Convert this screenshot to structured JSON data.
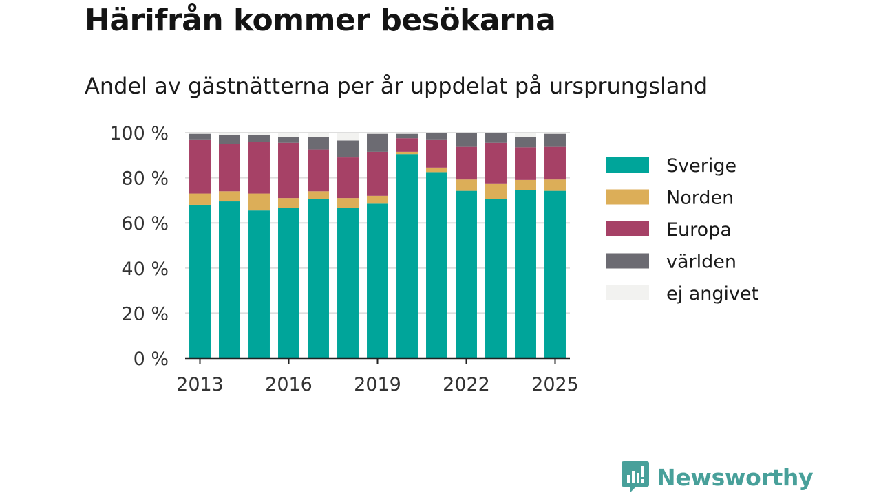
{
  "header": {
    "title": "Härifrån kommer besökarna",
    "subtitle": "Andel av gästnätterna per år uppdelat på ursprungsland"
  },
  "brand": {
    "name": "Newsworthy",
    "color": "#48a09a"
  },
  "chart_data": {
    "type": "bar",
    "stacked": true,
    "categories": [
      "2013",
      "2014",
      "2015",
      "2016",
      "2017",
      "2018",
      "2019",
      "2020",
      "2021",
      "2022",
      "2023",
      "2024",
      "2025"
    ],
    "x_tick_labels": [
      "2013",
      "2016",
      "2019",
      "2022",
      "2025"
    ],
    "y_tick_labels": [
      "0 %",
      "20 %",
      "40 %",
      "60 %",
      "80 %",
      "100 %"
    ],
    "y_ticks": [
      0,
      20,
      40,
      60,
      80,
      100
    ],
    "ylim": [
      0,
      100
    ],
    "grid": true,
    "legend_position": "right",
    "series": [
      {
        "name": "Sverige",
        "color": "#00a59a",
        "values": [
          68,
          69.5,
          65.5,
          66.5,
          70.5,
          66.5,
          68.5,
          90.5,
          82.5,
          74.2,
          70.5,
          74.5,
          74.2
        ]
      },
      {
        "name": "Norden",
        "color": "#dcae58",
        "values": [
          5,
          4.5,
          7.5,
          4.5,
          3.5,
          4.5,
          3.5,
          1,
          2,
          5,
          7,
          4.5,
          5
        ]
      },
      {
        "name": "Europa",
        "color": "#a64166",
        "values": [
          24,
          21,
          23,
          24.5,
          18.5,
          18,
          19.5,
          6,
          12.5,
          14.5,
          18,
          14.5,
          14.5
        ]
      },
      {
        "name": "världen",
        "color": "#6c6b72",
        "values": [
          2.5,
          4,
          3,
          2.5,
          5.5,
          7.5,
          8,
          2,
          3,
          6.3,
          4.5,
          4.5,
          5.8
        ]
      },
      {
        "name": "ej angivet",
        "color": "#f2f2f0",
        "values": [
          0.5,
          1,
          1,
          2,
          2,
          3.5,
          0.5,
          0.5,
          0,
          0,
          0,
          2,
          0.5
        ]
      }
    ]
  }
}
